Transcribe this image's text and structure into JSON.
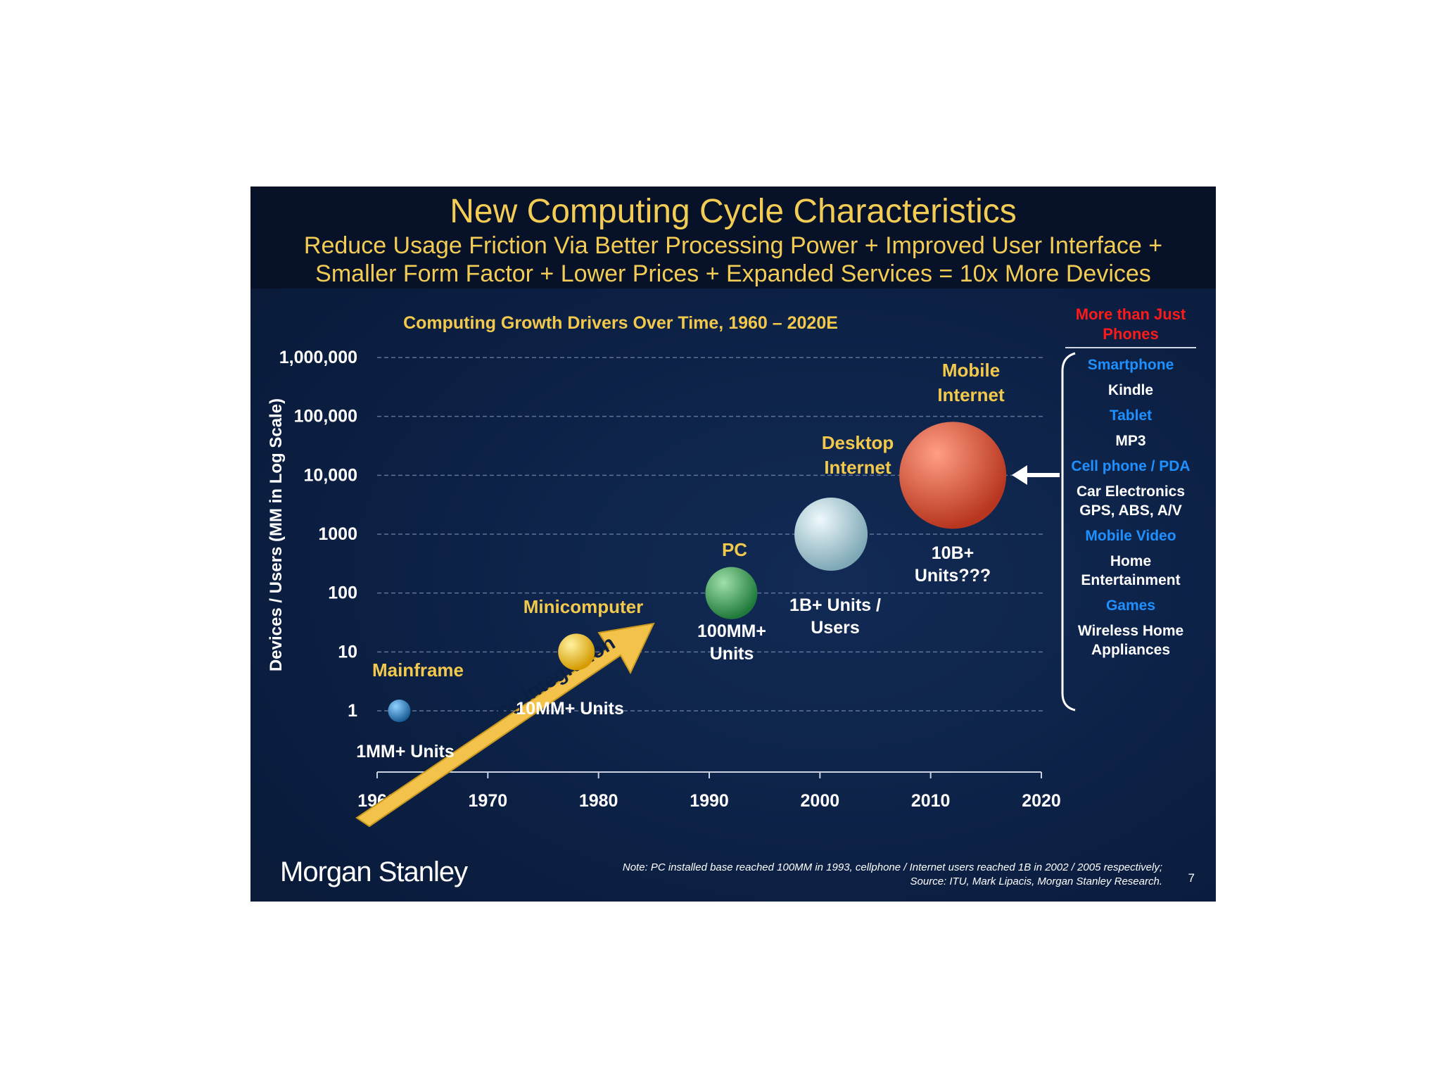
{
  "header": {
    "title": "New Computing Cycle Characteristics",
    "subtitle_line1": "Reduce Usage Friction Via Better Processing Power + Improved User Interface +",
    "subtitle_line2": "Smaller Form Factor + Lower Prices + Expanded Services = 10x More Devices"
  },
  "chart_data": {
    "type": "scatter",
    "title": "Computing Growth Drivers Over Time, 1960 – 2020E",
    "xlabel": "",
    "ylabel": "Devices / Users (MM in Log Scale)",
    "xlim": [
      1960,
      2020
    ],
    "ylim": [
      1,
      1000000
    ],
    "y_scale": "log",
    "x_ticks": [
      1960,
      1970,
      1980,
      1990,
      2000,
      2010,
      2020
    ],
    "y_ticks": [
      {
        "value": 1,
        "label": "1"
      },
      {
        "value": 10,
        "label": "10"
      },
      {
        "value": 100,
        "label": "100"
      },
      {
        "value": 1000,
        "label": "1000"
      },
      {
        "value": 10000,
        "label": "10,000"
      },
      {
        "value": 100000,
        "label": "100,000"
      },
      {
        "value": 1000000,
        "label": "1,000,000"
      }
    ],
    "points": [
      {
        "name": "Mainframe",
        "x": 1962,
        "y": 1,
        "units": "1MM+ Units",
        "color": "#2a86c9"
      },
      {
        "name": "Minicomputer",
        "x": 1978,
        "y": 10,
        "units": "10MM+ Units",
        "color": "#f2c01a"
      },
      {
        "name": "PC",
        "x": 1992,
        "y": 100,
        "units": "100MM+ Units",
        "color": "#3ca55c"
      },
      {
        "name": "Desktop Internet",
        "x": 2001,
        "y": 1000,
        "units": "1B+ Units / Users",
        "color": "#b9dce8"
      },
      {
        "name": "Mobile Internet",
        "x": 2012,
        "y": 10000,
        "units": "10B+ Units???",
        "color": "#e2573e"
      }
    ],
    "arrow_label": "Increasing Integration"
  },
  "right_panel": {
    "heading": "More than Just Phones",
    "items": [
      {
        "label": "Smartphone",
        "color": "blue"
      },
      {
        "label": "Kindle",
        "color": "white"
      },
      {
        "label": "Tablet",
        "color": "blue"
      },
      {
        "label": "MP3",
        "color": "white"
      },
      {
        "label": "Cell phone / PDA",
        "color": "blue"
      },
      {
        "label": "Car Electronics GPS, ABS, A/V",
        "color": "white"
      },
      {
        "label": "Mobile Video",
        "color": "blue"
      },
      {
        "label": "Home Entertainment",
        "color": "white"
      },
      {
        "label": "Games",
        "color": "blue"
      },
      {
        "label": "Wireless Home Appliances",
        "color": "white"
      }
    ]
  },
  "footer": {
    "logo": "Morgan Stanley",
    "note": "Note: PC installed base reached 100MM in 1993, cellphone / Internet users reached 1B in 2002 / 2005 respectively;",
    "source": "Source: ITU, Mark Lipacis, Morgan Stanley Research.",
    "page_number": "7"
  },
  "colors": {
    "gold": "#f2cc54",
    "background": "#0c2044",
    "highlight_red": "#ff1a1a",
    "list_blue": "#1e90ff"
  }
}
